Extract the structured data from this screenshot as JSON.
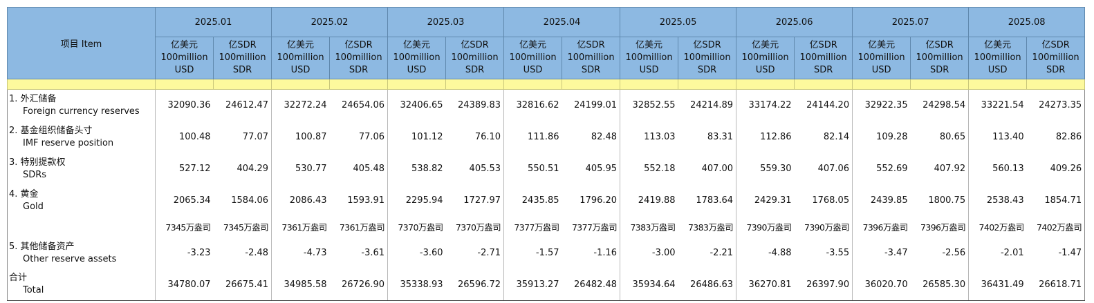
{
  "header": {
    "item_label": "项目 Item",
    "unit_usd": "亿美元 100million USD",
    "unit_sdr": "亿SDR 100million SDR",
    "periods": [
      "2025.01",
      "2025.02",
      "2025.03",
      "2025.04",
      "2025.05",
      "2025.06",
      "2025.07",
      "2025.08"
    ]
  },
  "rows": [
    {
      "zh": "1. 外汇储备",
      "en": "Foreign currency reserves",
      "values": [
        "32090.36",
        "24612.47",
        "32272.24",
        "24654.06",
        "32406.65",
        "24389.83",
        "32816.62",
        "24199.01",
        "32852.55",
        "24214.89",
        "33174.22",
        "24144.20",
        "32922.35",
        "24298.54",
        "33221.54",
        "24273.35"
      ]
    },
    {
      "zh": "2. 基金组织储备头寸",
      "en": "IMF reserve position",
      "values": [
        "100.48",
        "77.07",
        "100.87",
        "77.06",
        "101.12",
        "76.10",
        "111.86",
        "82.48",
        "113.03",
        "83.31",
        "112.86",
        "82.14",
        "109.28",
        "80.65",
        "113.40",
        "82.86"
      ]
    },
    {
      "zh": "3. 特别提款权",
      "en": "SDRs",
      "values": [
        "527.12",
        "404.29",
        "530.77",
        "405.48",
        "538.82",
        "405.53",
        "550.51",
        "405.95",
        "552.18",
        "407.00",
        "559.30",
        "407.06",
        "552.69",
        "407.92",
        "560.13",
        "409.26"
      ]
    },
    {
      "zh": "4. 黄金",
      "en": "Gold",
      "values": [
        "2065.34",
        "1584.06",
        "2086.43",
        "1593.91",
        "2295.94",
        "1727.97",
        "2435.85",
        "1796.20",
        "2419.88",
        "1783.64",
        "2429.31",
        "1768.05",
        "2439.85",
        "1800.75",
        "2538.43",
        "1854.71"
      ]
    },
    {
      "zh": "",
      "en": "",
      "values": [
        "7345万盎司",
        "7345万盎司",
        "7361万盎司",
        "7361万盎司",
        "7370万盎司",
        "7370万盎司",
        "7377万盎司",
        "7377万盎司",
        "7383万盎司",
        "7383万盎司",
        "7390万盎司",
        "7390万盎司",
        "7396万盎司",
        "7396万盎司",
        "7402万盎司",
        "7402万盎司"
      ]
    },
    {
      "zh": "5. 其他储备资产",
      "en": "Other reserve assets",
      "values": [
        "-3.23",
        "-2.48",
        "-4.73",
        "-3.61",
        "-3.60",
        "-2.71",
        "-1.57",
        "-1.16",
        "-3.00",
        "-2.21",
        "-4.88",
        "-3.55",
        "-3.47",
        "-2.56",
        "-2.01",
        "-1.47"
      ]
    },
    {
      "zh": "合计",
      "en": "Total",
      "values": [
        "34780.07",
        "26675.41",
        "34985.58",
        "26726.90",
        "35338.93",
        "26596.72",
        "35913.27",
        "26482.48",
        "35934.64",
        "26486.63",
        "36270.81",
        "26397.90",
        "36020.70",
        "26585.30",
        "36431.49",
        "26618.71"
      ]
    }
  ]
}
